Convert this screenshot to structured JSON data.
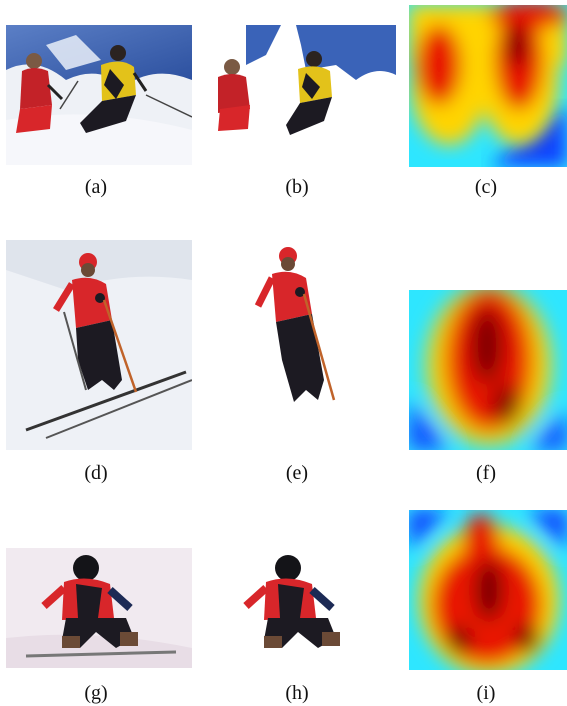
{
  "figure": {
    "captions": [
      "(a)",
      "(b)",
      "(c)",
      "(d)",
      "(e)",
      "(f)",
      "(g)",
      "(h)",
      "(i)"
    ],
    "panels": [
      {
        "id": "a",
        "kind": "photo",
        "subject": "two skiers on snowy mountain slope"
      },
      {
        "id": "b",
        "kind": "segmentation",
        "subject": "two skiers segmented, white background"
      },
      {
        "id": "c",
        "kind": "heatmap",
        "colormap": "jet"
      },
      {
        "id": "d",
        "kind": "photo",
        "subject": "skier in red jacket on snow"
      },
      {
        "id": "e",
        "kind": "segmentation",
        "subject": "skier in red jacket segmented"
      },
      {
        "id": "f",
        "kind": "heatmap",
        "colormap": "jet"
      },
      {
        "id": "g",
        "kind": "photo",
        "subject": "child in red jacket sitting in snow"
      },
      {
        "id": "h",
        "kind": "segmentation",
        "subject": "child segmented"
      },
      {
        "id": "i",
        "kind": "heatmap",
        "colormap": "jet"
      }
    ],
    "colors": {
      "snow": "#eef1f6",
      "sky": "#3a63b8",
      "jacket_red": "#d8262a",
      "jacket_yellow": "#e3c21a",
      "pants_dark": "#1c1a22",
      "jet_dark_red": "#7a0000",
      "jet_red": "#e81400",
      "jet_yellow": "#ffd400",
      "jet_cyan": "#2ee6ff",
      "jet_blue": "#1040ff",
      "jet_dark_blue": "#00007a"
    }
  }
}
